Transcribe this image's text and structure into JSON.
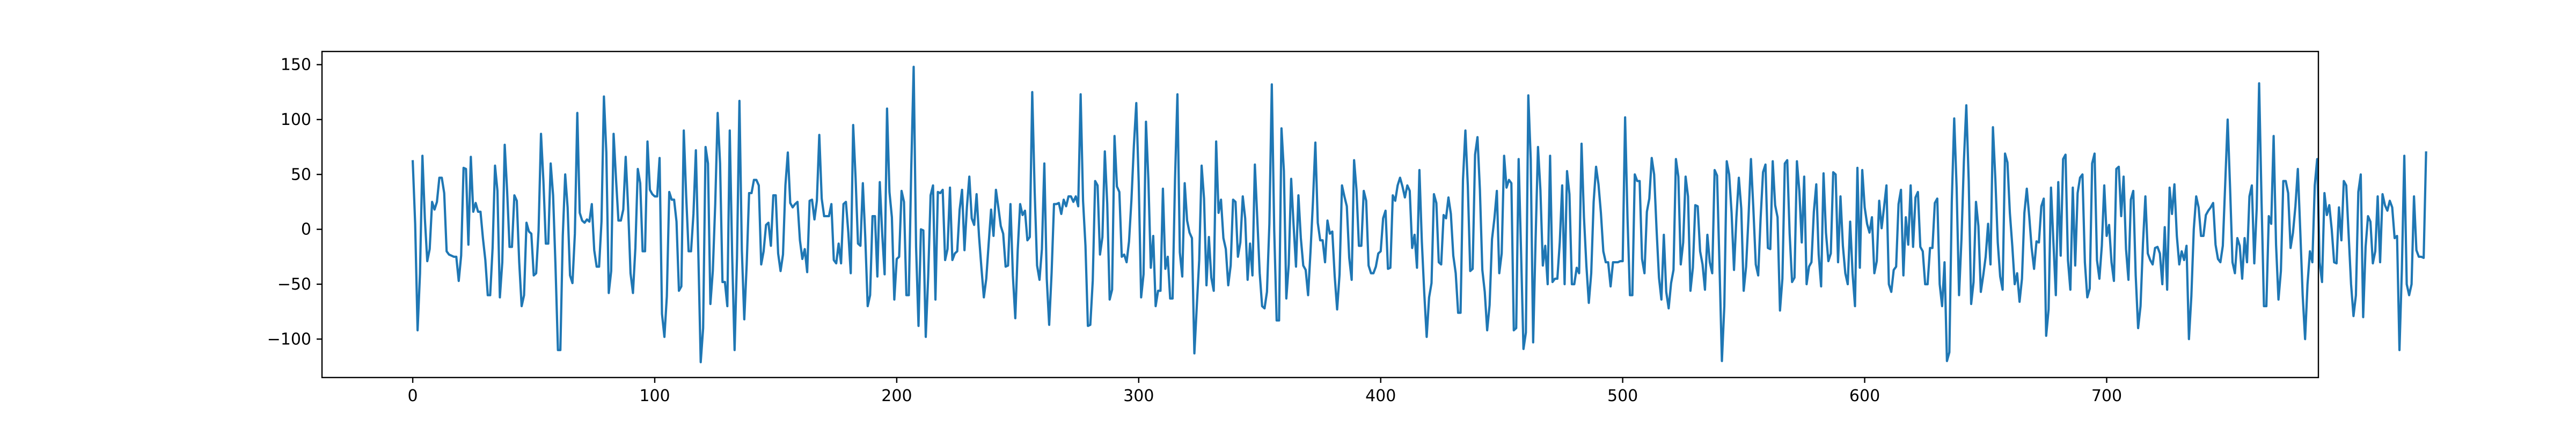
{
  "chart_data": {
    "type": "line",
    "title": "",
    "xlabel": "",
    "ylabel": "",
    "xlim": [
      -37.5,
      787.5
    ],
    "ylim": [
      -135,
      162
    ],
    "grid": false,
    "legend": "none",
    "x_ticks": [
      0,
      100,
      200,
      300,
      400,
      500,
      600,
      700
    ],
    "y_ticks": [
      -100,
      -50,
      0,
      50,
      100,
      150
    ],
    "x_tick_labels": [
      "0",
      "100",
      "200",
      "300",
      "400",
      "500",
      "600",
      "700"
    ],
    "y_tick_labels": [
      "−100",
      "−50",
      "0",
      "50",
      "100",
      "150"
    ],
    "series": [
      {
        "color": "#1f77b4",
        "x_start": 0,
        "x_step": 1,
        "values": [
          62,
          5,
          -92,
          -40,
          67,
          10,
          -29,
          -18,
          25,
          18,
          25,
          47,
          47,
          33,
          -20,
          -23,
          -24,
          -25,
          -25,
          -47,
          -24,
          56,
          55,
          -14,
          66,
          16,
          24,
          16,
          16,
          -8,
          -28,
          -60,
          -60,
          -17,
          58,
          35,
          -62,
          -30,
          77,
          35,
          -16,
          -16,
          31,
          26,
          -30,
          -70,
          -60,
          6,
          -2,
          -4,
          -42,
          -40,
          -1,
          87,
          44,
          -13,
          -13,
          60,
          31,
          -34,
          -110,
          -110,
          -6,
          50,
          20,
          -42,
          -49,
          -4,
          106,
          15,
          8,
          6,
          9,
          7,
          23,
          -19,
          -34,
          -34,
          7,
          121,
          70,
          -58,
          -38,
          87,
          46,
          8,
          8,
          18,
          66,
          20,
          -40,
          -58,
          -17,
          55,
          42,
          -20,
          -20,
          80,
          36,
          32,
          30,
          30,
          65,
          -77,
          -98,
          -61,
          34,
          27,
          27,
          7,
          -56,
          -52,
          90,
          30,
          -20,
          -20,
          14,
          72,
          -20,
          -121,
          -90,
          75,
          60,
          -68,
          -38,
          23,
          106,
          60,
          -48,
          -48,
          -70,
          90,
          -24,
          -110,
          -25,
          117,
          -19,
          -82,
          -32,
          33,
          33,
          45,
          45,
          40,
          -32,
          -20,
          4,
          6,
          -15,
          31,
          31,
          -22,
          -38,
          -23,
          40,
          70,
          24,
          20,
          23,
          25,
          -10,
          -27,
          -18,
          -39,
          26,
          27,
          9,
          26,
          86,
          28,
          12,
          12,
          12,
          23,
          -28,
          -31,
          -13,
          -31,
          23,
          25,
          -3,
          -40,
          95,
          47,
          -13,
          -15,
          42,
          -7,
          -70,
          -60,
          12,
          12,
          -43,
          43,
          -4,
          -41,
          110,
          34,
          11,
          -64,
          -27,
          -25,
          35,
          25,
          -60,
          -60,
          55,
          148,
          -16,
          -88,
          0,
          -1,
          -98,
          -43,
          31,
          40,
          -64,
          34,
          33,
          36,
          -28,
          -18,
          38,
          -28,
          -22,
          -20,
          18,
          36,
          -19,
          20,
          48,
          10,
          4,
          32,
          -6,
          -35,
          -62,
          -45,
          -13,
          18,
          -6,
          36,
          20,
          3,
          -4,
          -34,
          -33,
          23,
          -42,
          -81,
          -19,
          23,
          13,
          17,
          -10,
          -7,
          125,
          35,
          -33,
          -46,
          -18,
          60,
          -45,
          -87,
          -40,
          23,
          23,
          24,
          14,
          27,
          21,
          30,
          30,
          25,
          30,
          21,
          123,
          26,
          -15,
          -88,
          -87,
          -47,
          44,
          40,
          -23,
          -7,
          71,
          23,
          -64,
          -55,
          85,
          39,
          34,
          -25,
          -23,
          -30,
          -11,
          27,
          76,
          115,
          43,
          -62,
          -41,
          98,
          45,
          -35,
          -6,
          -70,
          -56,
          -56,
          37,
          -36,
          -25,
          -63,
          -63,
          45,
          123,
          -21,
          -43,
          42,
          8,
          -3,
          -8,
          -113,
          -70,
          -28,
          58,
          28,
          -51,
          -7,
          -44,
          -56,
          80,
          15,
          27,
          -8,
          -18,
          -51,
          -33,
          27,
          25,
          -25,
          -12,
          30,
          10,
          -46,
          -13,
          -42,
          59,
          10,
          -40,
          -70,
          -72,
          -57,
          5,
          132,
          -1,
          -83,
          -83,
          92,
          53,
          -63,
          -32,
          46,
          4,
          -34,
          31,
          -8,
          -33,
          -37,
          -60,
          -20,
          25,
          79,
          6,
          -10,
          -10,
          -30,
          8,
          -4,
          -2,
          -43,
          -73,
          -41,
          40,
          30,
          21,
          -26,
          -46,
          63,
          36,
          -15,
          -15,
          35,
          26,
          -33,
          -40,
          -40,
          -34,
          -22,
          -20,
          10,
          17,
          -36,
          -35,
          31,
          26,
          40,
          47,
          39,
          29,
          40,
          35,
          -17,
          -5,
          -35,
          54,
          -11,
          -58,
          -98,
          -62,
          -49,
          32,
          24,
          -30,
          -32,
          13,
          10,
          29,
          14,
          -24,
          -40,
          -76,
          -76,
          45,
          90,
          40,
          -38,
          -36,
          68,
          84,
          36,
          -37,
          -57,
          -92,
          -69,
          -9,
          10,
          35,
          -40,
          -22,
          67,
          38,
          45,
          42,
          -92,
          -90,
          64,
          -20,
          -109,
          -94,
          122,
          64,
          -103,
          -10,
          75,
          36,
          -33,
          -15,
          -50,
          67,
          -48,
          -45,
          -45,
          -12,
          40,
          -50,
          53,
          32,
          -50,
          -50,
          -35,
          -40,
          78,
          11,
          -33,
          -67,
          -40,
          25,
          57,
          41,
          15,
          -20,
          -30,
          -30,
          -52,
          -30,
          -30,
          -30,
          -29,
          -29,
          102,
          10,
          -60,
          -60,
          50,
          44,
          44,
          -27,
          -40,
          16,
          28,
          65,
          50,
          0,
          -44,
          -64,
          -5,
          -57,
          -72,
          -49,
          -37,
          64,
          48,
          -32,
          -12,
          48,
          30,
          -56,
          -35,
          22,
          21,
          -20,
          -32,
          -55,
          -5,
          -30,
          -40,
          54,
          49,
          -32,
          -120,
          -70,
          62,
          50,
          15,
          -37,
          11,
          47,
          19,
          -56,
          -34,
          11,
          64,
          19,
          -32,
          -42,
          10,
          52,
          59,
          -17,
          -18,
          62,
          22,
          11,
          -74,
          -45,
          60,
          63,
          -4,
          -48,
          -44,
          62,
          35,
          -12,
          48,
          -50,
          -34,
          -30,
          16,
          41,
          -23,
          -52,
          51,
          -3,
          -29,
          -22,
          52,
          50,
          -30,
          30,
          -15,
          -40,
          -50,
          7,
          -40,
          -70,
          56,
          -35,
          54,
          20,
          5,
          -3,
          11,
          -40,
          -29,
          26,
          1,
          20,
          40,
          -50,
          -57,
          -37,
          -34,
          23,
          36,
          -42,
          11,
          -14,
          40,
          -16,
          29,
          34,
          -16,
          -20,
          -50,
          -50,
          -17,
          -17,
          24,
          28,
          -50,
          -70,
          -30,
          -120,
          -112,
          25,
          101,
          38,
          -60,
          -9,
          62,
          113,
          44,
          -68,
          -48,
          25,
          3,
          -57,
          -42,
          -25,
          5,
          -32,
          93,
          46,
          -12,
          -43,
          -55,
          69,
          61,
          15,
          -15,
          -50,
          -40,
          -66,
          -45,
          15,
          37,
          12,
          -17,
          -36,
          -11,
          -12,
          21,
          28,
          -97,
          -73,
          38,
          -12,
          -60,
          43,
          -24,
          64,
          68,
          -28,
          -55,
          38,
          -33,
          33,
          47,
          50,
          -30,
          -62,
          -54,
          60,
          69,
          -28,
          -45,
          -15,
          40,
          -6,
          4,
          -30,
          -47,
          55,
          57,
          12,
          48,
          -18,
          -46,
          27,
          35,
          -42,
          -90,
          -70,
          -13,
          30,
          -22,
          -28,
          -32,
          -17,
          -16,
          -22,
          -50,
          2,
          -55,
          38,
          14,
          41,
          -6,
          -32,
          -20,
          -28,
          -15,
          -100,
          -61,
          0,
          30,
          20,
          -6,
          -6,
          13,
          17,
          20,
          24,
          -14,
          -27,
          -30,
          -15,
          42,
          100,
          38,
          -30,
          -40,
          -8,
          -15,
          -45,
          -8,
          -30,
          30,
          40,
          -31,
          19,
          133,
          26,
          -70,
          -70,
          12,
          5,
          85,
          -14,
          -64,
          -38,
          44,
          44,
          33,
          -17,
          -3,
          21,
          55,
          -1,
          -60,
          -100,
          -50,
          -20,
          -30,
          40,
          64,
          -30,
          -48,
          33,
          13,
          22,
          0,
          -30,
          -31,
          20,
          -10,
          44,
          40,
          -5,
          -50,
          -79,
          -60,
          34,
          50,
          -80,
          -16,
          12,
          7,
          -31,
          -20,
          30,
          -30,
          32,
          22,
          17,
          26,
          20,
          -8,
          -6,
          -110,
          -36,
          67,
          -50,
          -60,
          -50,
          30,
          -19,
          -25,
          -25,
          -26,
          70
        ]
      }
    ]
  }
}
